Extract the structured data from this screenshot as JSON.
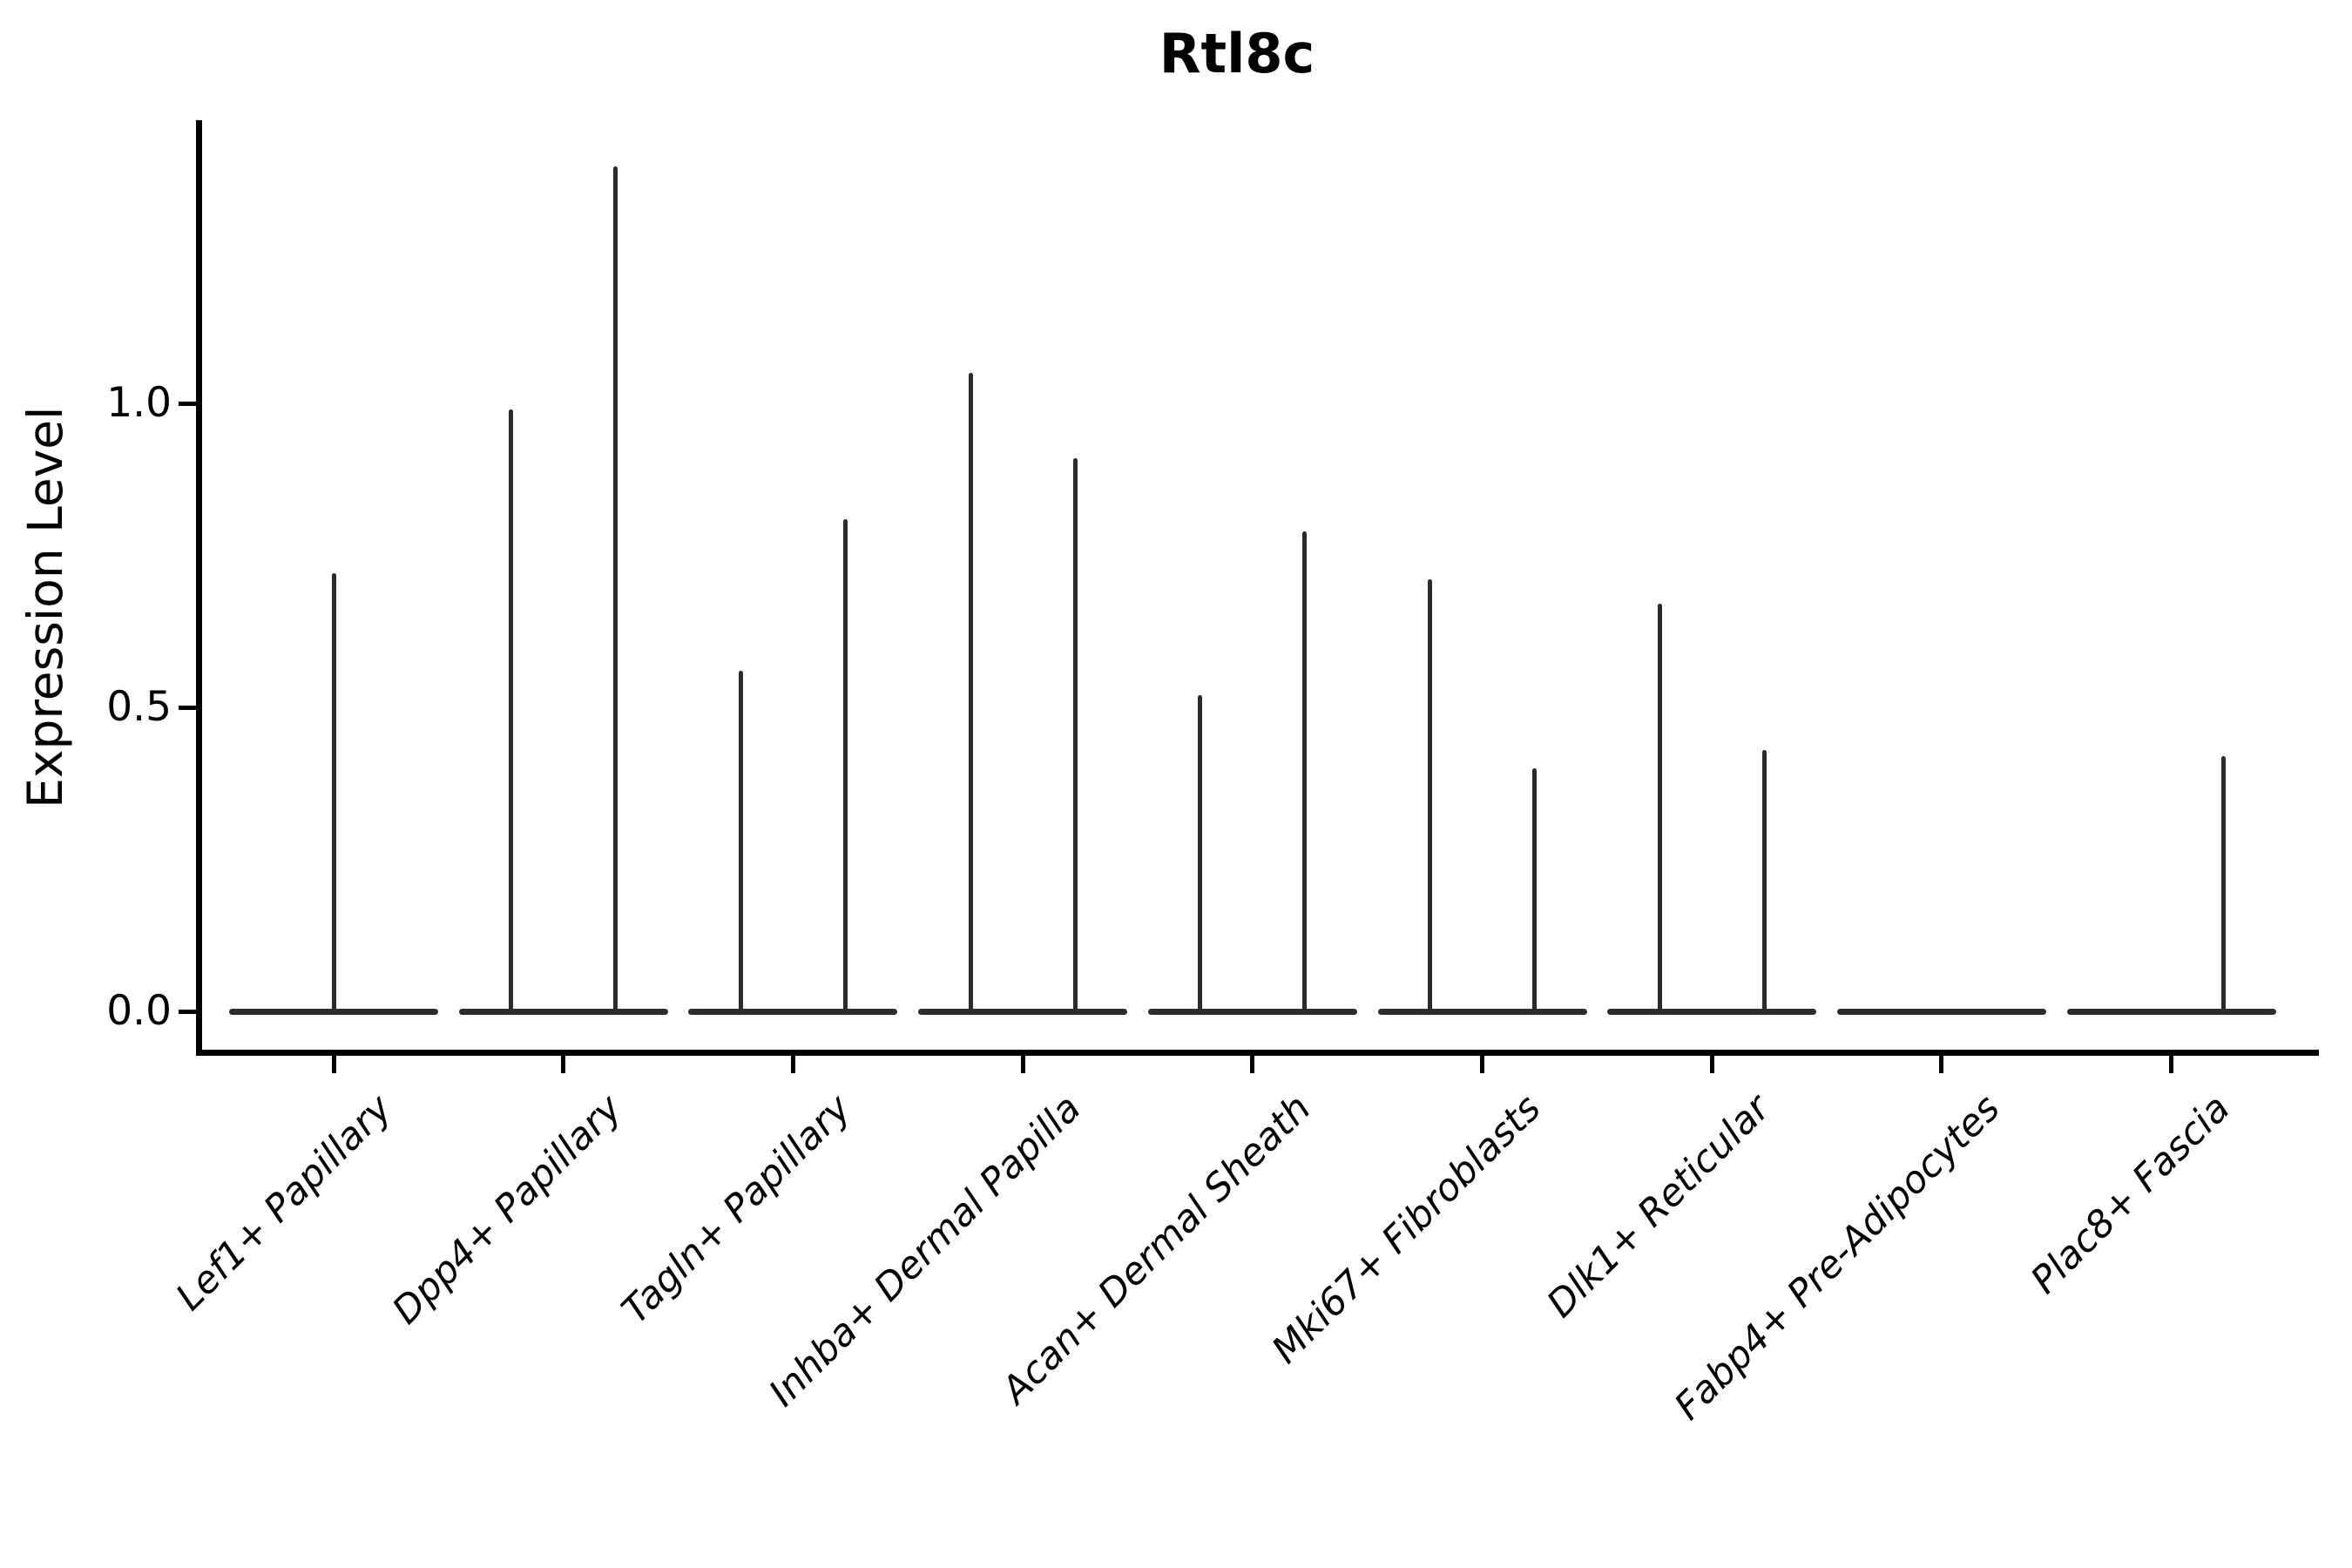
{
  "chart_data": {
    "type": "violin",
    "title": "Rtl8c",
    "xlabel": "",
    "ylabel": "Expression Level",
    "yticks": [
      {
        "value": 0.0,
        "label": "0.0"
      },
      {
        "value": 0.5,
        "label": "0.5"
      },
      {
        "value": 1.0,
        "label": "1.0"
      }
    ],
    "ylim": [
      0,
      1.47
    ],
    "grid": false,
    "legend": "none",
    "x_tick_label_rotation_deg": 45,
    "x_tick_label_style": "italic",
    "line_color": "#2b2b2b",
    "axis_color": "#000000",
    "background_color": "#ffffff",
    "description": "Violin plot of Rtl8c expression; violins are collapsed to a flat baseline at 0 with a thin spike up to the maximum expression value. Most categories contain two split violins (left/right).",
    "categories": [
      "Lef1+ Papillary",
      "Dpp4+ Papillary",
      "Tagln+ Papillary",
      "Inhba+ Dermal Papilla",
      "Acan+ Dermal Sheath",
      "Mki67+ Fibroblasts",
      "Dlk1+ Reticular",
      "Fabp4+ Pre-Adipocytes",
      "Plac8+ Fascia"
    ],
    "violins": [
      {
        "category": "Lef1+ Papillary",
        "spikes": [
          {
            "x_frac": 0.5,
            "max": 0.72
          }
        ]
      },
      {
        "category": "Dpp4+ Papillary",
        "spikes": [
          {
            "x_frac": 0.25,
            "max": 0.99
          },
          {
            "x_frac": 0.75,
            "max": 1.39
          }
        ]
      },
      {
        "category": "Tagln+ Papillary",
        "spikes": [
          {
            "x_frac": 0.25,
            "max": 0.56
          },
          {
            "x_frac": 0.75,
            "max": 0.81
          }
        ]
      },
      {
        "category": "Inhba+ Dermal Papilla",
        "spikes": [
          {
            "x_frac": 0.25,
            "max": 1.05
          },
          {
            "x_frac": 0.75,
            "max": 0.91
          }
        ]
      },
      {
        "category": "Acan+ Dermal Sheath",
        "spikes": [
          {
            "x_frac": 0.25,
            "max": 0.52
          },
          {
            "x_frac": 0.75,
            "max": 0.79
          }
        ]
      },
      {
        "category": "Mki67+ Fibroblasts",
        "spikes": [
          {
            "x_frac": 0.25,
            "max": 0.71
          },
          {
            "x_frac": 0.75,
            "max": 0.4
          }
        ]
      },
      {
        "category": "Dlk1+ Reticular",
        "spikes": [
          {
            "x_frac": 0.25,
            "max": 0.67
          },
          {
            "x_frac": 0.75,
            "max": 0.43
          }
        ]
      },
      {
        "category": "Fabp4+ Pre-Adipocytes",
        "spikes": []
      },
      {
        "category": "Plac8+ Fascia",
        "spikes": [
          {
            "x_frac": 0.75,
            "max": 0.42
          }
        ]
      }
    ]
  }
}
